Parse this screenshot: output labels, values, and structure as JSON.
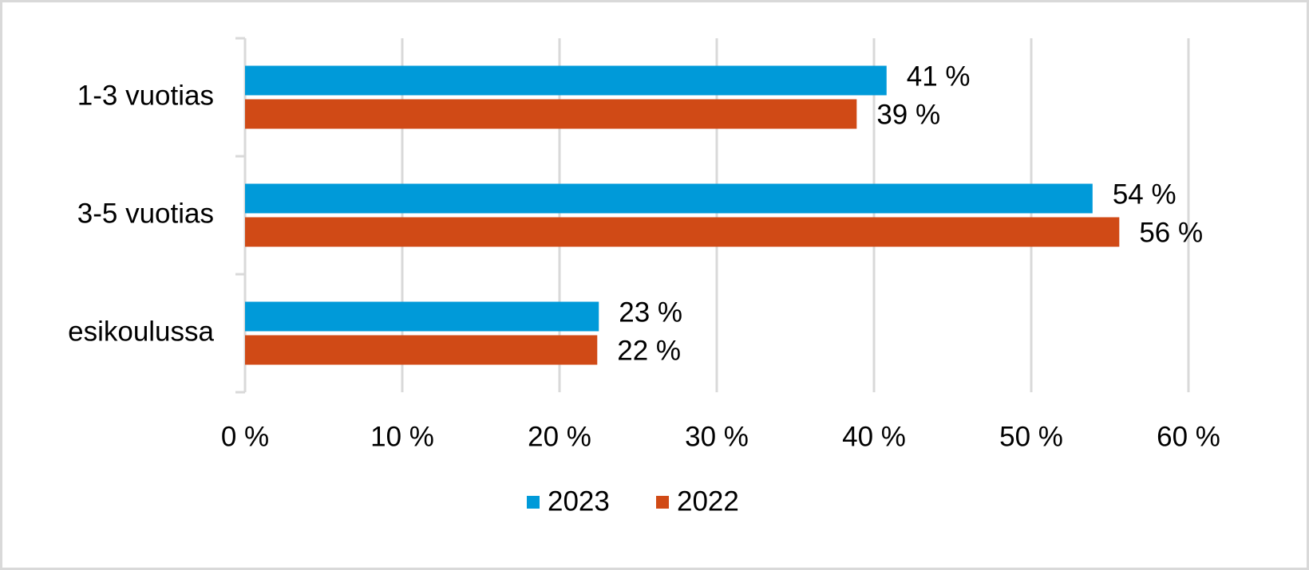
{
  "chart_data": {
    "type": "bar",
    "orientation": "horizontal",
    "categories": [
      "1-3 vuotias",
      "3-5 vuotias",
      "esikoulussa"
    ],
    "series": [
      {
        "name": "2023",
        "color": "#009ad9",
        "values": [
          40.8,
          53.9,
          22.5
        ],
        "value_labels": [
          "41 %",
          "54 %",
          "23 %"
        ]
      },
      {
        "name": "2022",
        "color": "#d04a16",
        "values": [
          38.9,
          55.6,
          22.4
        ],
        "value_labels": [
          "39 %",
          "56 %",
          "22 %"
        ]
      }
    ],
    "xlim": [
      0,
      60
    ],
    "xticks": [
      {
        "value": 0,
        "label": "0 %"
      },
      {
        "value": 10,
        "label": "10 %"
      },
      {
        "value": 20,
        "label": "20 %"
      },
      {
        "value": 30,
        "label": "30 %"
      },
      {
        "value": 40,
        "label": "40 %"
      },
      {
        "value": 50,
        "label": "50 %"
      },
      {
        "value": 60,
        "label": "60 %"
      }
    ],
    "grid": true,
    "legend": "bottom"
  }
}
